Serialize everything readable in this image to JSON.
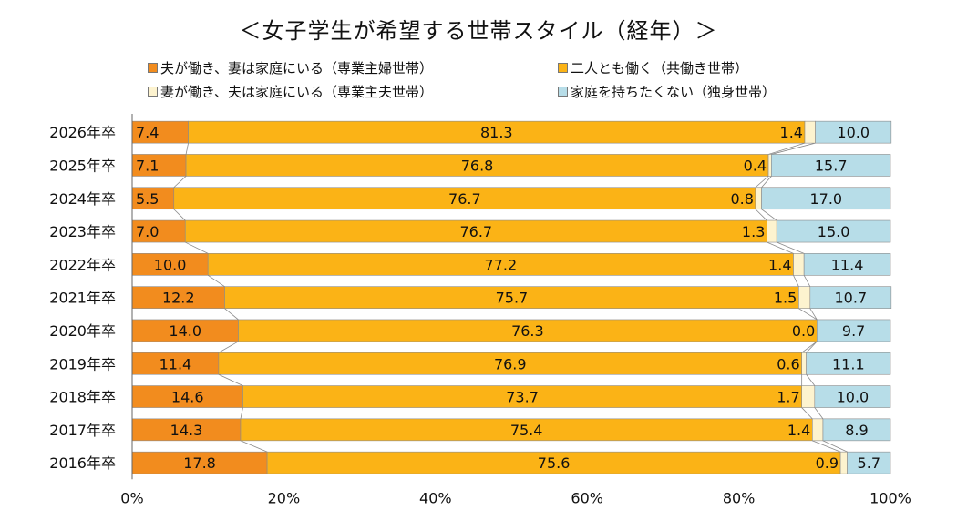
{
  "chart_data": {
    "type": "bar",
    "orientation": "horizontal",
    "stacked": true,
    "title": "＜女子学生が希望する世帯スタイル（経年）＞",
    "categories": [
      "2026年卒",
      "2025年卒",
      "2024年卒",
      "2023年卒",
      "2022年卒",
      "2021年卒",
      "2020年卒",
      "2019年卒",
      "2018年卒",
      "2017年卒",
      "2016年卒"
    ],
    "series": [
      {
        "name": "夫が働き、妻は家庭にいる（専業主婦世帯）",
        "color": "#f28c1e",
        "values": [
          7.4,
          7.1,
          5.5,
          7.0,
          10.0,
          12.2,
          14.0,
          11.4,
          14.6,
          14.3,
          17.8
        ]
      },
      {
        "name": "二人とも働く（共働き世帯）",
        "color": "#fbb316",
        "values": [
          81.3,
          76.8,
          76.7,
          76.7,
          77.2,
          75.7,
          76.3,
          76.9,
          73.7,
          75.4,
          75.6
        ]
      },
      {
        "name": "妻が働き、夫は家庭にいる（専業主夫世帯）",
        "color": "#fdf3cf",
        "values": [
          1.4,
          0.4,
          0.8,
          1.3,
          1.4,
          1.5,
          0.0,
          0.6,
          1.7,
          1.4,
          0.9
        ]
      },
      {
        "name": "家庭を持ちたくない（独身世帯）",
        "color": "#b7dde8",
        "values": [
          10.0,
          15.7,
          17.0,
          15.0,
          11.4,
          10.7,
          9.7,
          11.1,
          10.0,
          8.9,
          5.7
        ]
      }
    ],
    "xaxis": {
      "ticks": [
        "0%",
        "20%",
        "40%",
        "60%",
        "80%",
        "100%"
      ],
      "xlim": [
        0,
        100
      ]
    },
    "legend_position": "top"
  },
  "legend": {
    "item1": "夫が働き、妻は家庭にいる（専業主婦世帯）",
    "item2": "二人とも働く（共働き世帯）",
    "item3": "妻が働き、夫は家庭にいる（専業主夫世帯）",
    "item4": "家庭を持ちたくない（独身世帯）"
  }
}
